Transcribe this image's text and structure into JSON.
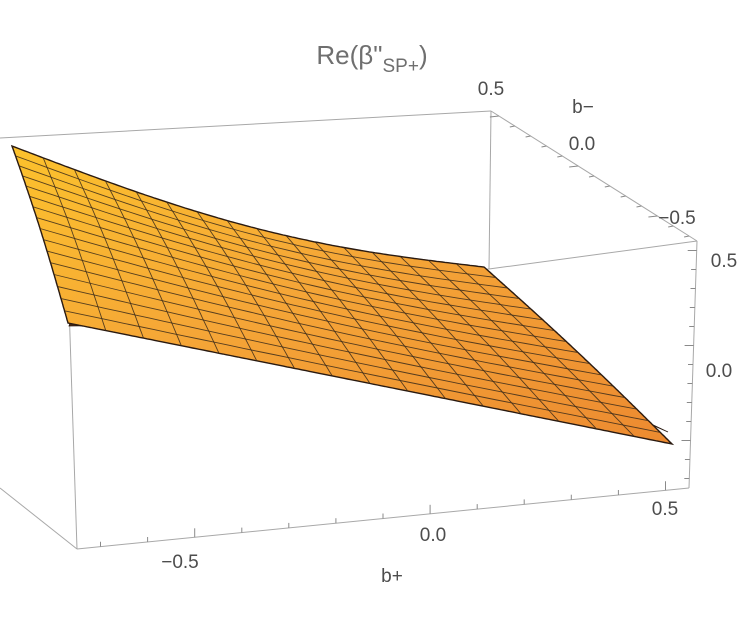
{
  "chart_data": {
    "type": "surface3d",
    "title_main": "Re(β\"",
    "title_sub": "SP+",
    "title_close": ")",
    "x_axis": {
      "label": "b+",
      "range": [
        -0.75,
        0.55
      ],
      "ticks": [
        -0.5,
        0.0,
        0.5
      ],
      "tick_labels": [
        "−0.5",
        "0.0",
        "0.5"
      ]
    },
    "y_axis": {
      "label": "b−",
      "range": [
        -0.75,
        0.55
      ],
      "ticks": [
        0.5,
        0.0,
        -0.5
      ],
      "tick_labels": [
        "0.5",
        "0.0",
        "−0.5"
      ]
    },
    "z_axis": {
      "label": "",
      "range": [
        -0.75,
        0.55
      ],
      "ticks": [
        0.5,
        0.0
      ],
      "tick_labels": [
        "0.5",
        "0.0"
      ]
    },
    "surface_color_top": "#fbbf2a",
    "surface_color_mid": "#f29a35",
    "surface_color_underside": "#4a2a18",
    "mesh_color": "#3a2a1a",
    "grid": false
  }
}
